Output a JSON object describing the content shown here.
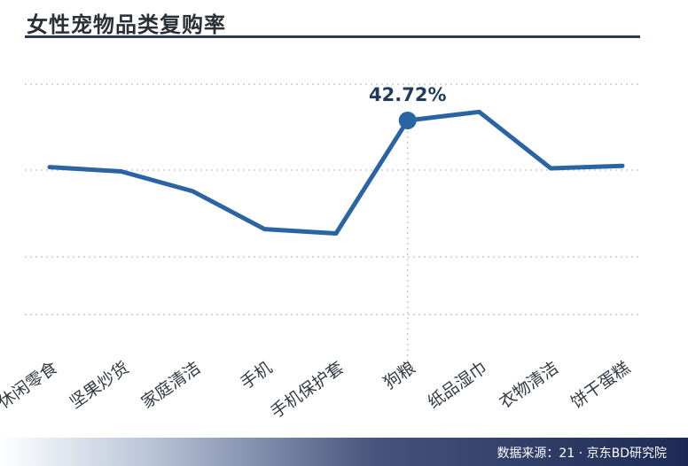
{
  "chart_data": {
    "type": "line",
    "title": "女性宠物品类复购率",
    "categories": [
      "休闲零食",
      "坚果炒货",
      "家庭清洁",
      "手机",
      "手机保护套",
      "狗粮",
      "纸品湿巾",
      "衣物清洁",
      "饼干蛋糕"
    ],
    "values": [
      35.2,
      34.5,
      31.3,
      25.2,
      24.5,
      42.72,
      44.1,
      35.0,
      35.4
    ],
    "highlight": {
      "index": 5,
      "label": "42.72%"
    },
    "ylim": [
      5,
      55
    ],
    "grid": "dotted-horizontal",
    "colors": {
      "line": "#2a64a3",
      "marker": "#2a64a3",
      "label": "#1f3b5e"
    }
  },
  "footer": {
    "source": "数据来源：21 · 京东BD研究院"
  }
}
